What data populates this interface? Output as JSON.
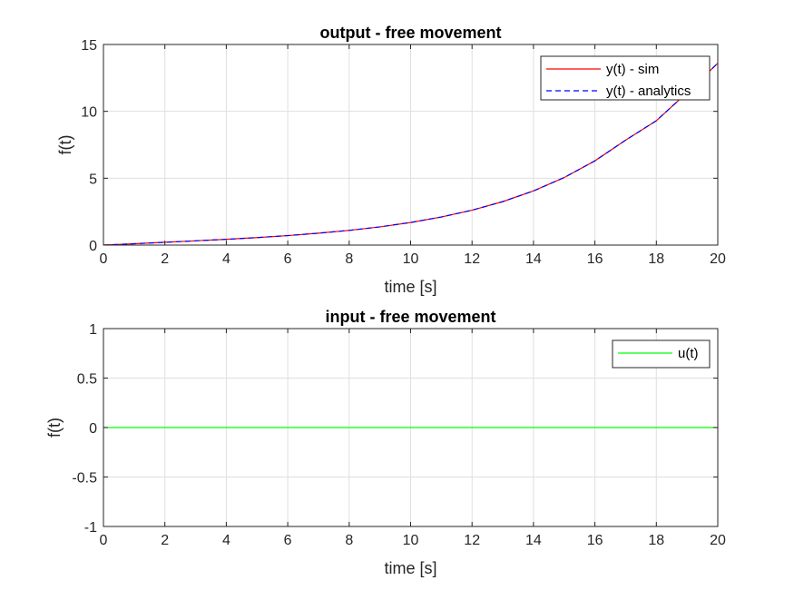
{
  "chart_data": [
    {
      "type": "line",
      "title": "output - free movement",
      "xlabel": "time [s]",
      "ylabel": "f(t)",
      "xlim": [
        0,
        20
      ],
      "ylim": [
        0,
        15
      ],
      "xticks": [
        0,
        2,
        4,
        6,
        8,
        10,
        12,
        14,
        16,
        18,
        20
      ],
      "yticks": [
        0,
        5,
        10,
        15
      ],
      "xtick_labels": [
        "0",
        "2",
        "4",
        "6",
        "8",
        "10",
        "12",
        "14",
        "16",
        "18",
        "20"
      ],
      "ytick_labels": [
        "0",
        "5",
        "10",
        "15"
      ],
      "grid": true,
      "legend_position": "top-right",
      "series": [
        {
          "name": "y(t) - sim",
          "color": "#ff0000",
          "style": "solid",
          "x": [
            0,
            1,
            2,
            3,
            4,
            5,
            6,
            7,
            8,
            9,
            10,
            11,
            12,
            13,
            14,
            15,
            16,
            17,
            18,
            19,
            20
          ],
          "y": [
            0.0,
            0.1,
            0.21,
            0.32,
            0.43,
            0.56,
            0.71,
            0.89,
            1.1,
            1.36,
            1.69,
            2.1,
            2.61,
            3.25,
            4.05,
            5.05,
            6.3,
            7.85,
            9.3,
            11.4,
            13.6
          ]
        },
        {
          "name": "y(t) - analytics",
          "color": "#0000ff",
          "style": "dashed",
          "x": [
            0,
            1,
            2,
            3,
            4,
            5,
            6,
            7,
            8,
            9,
            10,
            11,
            12,
            13,
            14,
            15,
            16,
            17,
            18,
            19,
            20
          ],
          "y": [
            0.0,
            0.1,
            0.21,
            0.32,
            0.43,
            0.56,
            0.71,
            0.89,
            1.1,
            1.36,
            1.69,
            2.1,
            2.61,
            3.25,
            4.05,
            5.05,
            6.3,
            7.85,
            9.3,
            11.4,
            13.6
          ]
        }
      ]
    },
    {
      "type": "line",
      "title": "input - free movement",
      "xlabel": "time [s]",
      "ylabel": "f(t)",
      "xlim": [
        0,
        20
      ],
      "ylim": [
        -1,
        1
      ],
      "xticks": [
        0,
        2,
        4,
        6,
        8,
        10,
        12,
        14,
        16,
        18,
        20
      ],
      "yticks": [
        -1,
        -0.5,
        0,
        0.5,
        1
      ],
      "xtick_labels": [
        "0",
        "2",
        "4",
        "6",
        "8",
        "10",
        "12",
        "14",
        "16",
        "18",
        "20"
      ],
      "ytick_labels": [
        "-1",
        "-0.5",
        "0",
        "0.5",
        "1"
      ],
      "grid": true,
      "legend_position": "top-right",
      "series": [
        {
          "name": "u(t)",
          "color": "#00ff00",
          "style": "solid",
          "x": [
            0,
            20
          ],
          "y": [
            0,
            0
          ]
        }
      ]
    }
  ]
}
